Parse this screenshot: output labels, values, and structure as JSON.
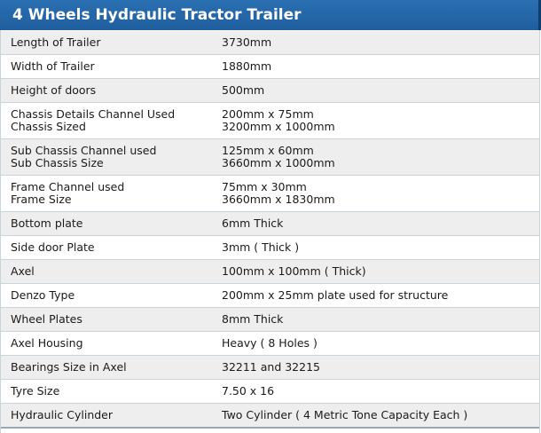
{
  "title": "4 Wheels Hydraulic Tractor Trailer",
  "rows": [
    {
      "label": [
        "Length of Trailer"
      ],
      "value": [
        "3730mm"
      ]
    },
    {
      "label": [
        "Width of Trailer"
      ],
      "value": [
        "1880mm"
      ]
    },
    {
      "label": [
        "Height of doors"
      ],
      "value": [
        "500mm"
      ]
    },
    {
      "label": [
        "Chassis Details Channel Used",
        "Chassis Sized"
      ],
      "value": [
        "200mm x 75mm",
        "3200mm x 1000mm"
      ]
    },
    {
      "label": [
        "Sub Chassis Channel used",
        "Sub Chassis Size"
      ],
      "value": [
        "125mm x 60mm",
        "3660mm x 1000mm"
      ]
    },
    {
      "label": [
        "Frame Channel used",
        "Frame Size"
      ],
      "value": [
        "75mm x 30mm",
        "3660mm x 1830mm"
      ]
    },
    {
      "label": [
        "Bottom plate"
      ],
      "value": [
        "6mm Thick"
      ]
    },
    {
      "label": [
        "Side door Plate"
      ],
      "value": [
        "3mm ( Thick )"
      ]
    },
    {
      "label": [
        "Axel"
      ],
      "value": [
        "100mm x 100mm ( Thick)"
      ]
    },
    {
      "label": [
        "Denzo Type"
      ],
      "value": [
        "200mm x 25mm plate used for structure"
      ]
    },
    {
      "label": [
        "Wheel Plates"
      ],
      "value": [
        "8mm Thick"
      ]
    },
    {
      "label": [
        "Axel Housing"
      ],
      "value": [
        "Heavy ( 8 Holes )"
      ]
    },
    {
      "label": [
        "Bearings Size in Axel"
      ],
      "value": [
        "32211 and 32215"
      ]
    },
    {
      "label": [
        "Tyre Size"
      ],
      "value": [
        "7.50 x 16"
      ]
    },
    {
      "label": [
        "Hydraulic Cylinder"
      ],
      "value": [
        "Two Cylinder ( 4 Metric Tone Capacity Each )"
      ]
    }
  ]
}
